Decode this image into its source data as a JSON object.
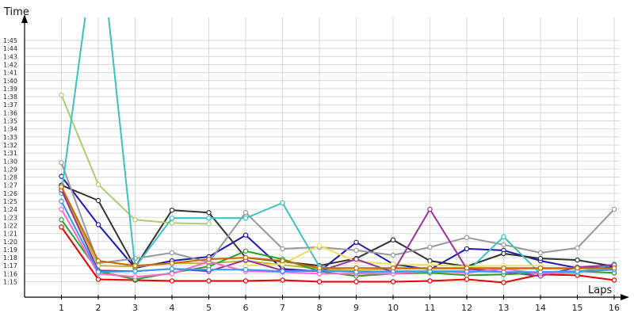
{
  "chart_data": {
    "type": "line",
    "xlabel": "Laps",
    "ylabel": "Time",
    "xlim": [
      0,
      16
    ],
    "ylim": [
      74,
      107
    ],
    "x": [
      1,
      2,
      3,
      4,
      5,
      6,
      7,
      8,
      9,
      10,
      11,
      12,
      13,
      14,
      15,
      16
    ],
    "x_tick_labels": [
      "1",
      "2",
      "3",
      "4",
      "5",
      "6",
      "7",
      "8",
      "9",
      "10",
      "11",
      "12",
      "13",
      "14",
      "15",
      "16"
    ],
    "y_ticks": [
      75,
      76,
      77,
      78,
      79,
      80,
      81,
      82,
      83,
      84,
      85,
      86,
      87,
      88,
      89,
      90,
      91,
      92,
      93,
      94,
      95,
      96,
      97,
      98,
      99,
      100,
      101,
      102,
      103,
      104,
      105
    ],
    "y_tick_labels": [
      "1:15",
      "1:16",
      "1:17",
      "1:18",
      "1:19",
      "1:20",
      "1:21",
      "1:22",
      "1:23",
      "1:24",
      "1:25",
      "1:26",
      "1:27",
      "1:28",
      "1:29",
      "1:30",
      "1:31",
      "1:32",
      "1:33",
      "1:34",
      "1:35",
      "1:36",
      "1:37",
      "1:38",
      "1:39",
      "1:40",
      "1:41",
      "1:42",
      "1:43",
      "1:44",
      "1:45"
    ],
    "grid": true,
    "legend": "none",
    "series": [
      {
        "color": "#e60000",
        "values": [
          81.8,
          75.3,
          75.2,
          75.1,
          75.1,
          75.1,
          75.2,
          75.0,
          75.0,
          75.0,
          75.1,
          75.3,
          74.9,
          75.9,
          75.8,
          75.2
        ]
      },
      {
        "color": "#1a1ab3",
        "values": [
          88.1,
          82.1,
          76.7,
          77.6,
          78.1,
          80.8,
          76.6,
          76.3,
          79.9,
          77.2,
          76.5,
          79.1,
          78.9,
          77.6,
          76.7,
          76.8
        ]
      },
      {
        "color": "#333333",
        "values": [
          87.0,
          85.1,
          76.8,
          83.9,
          83.6,
          78.0,
          77.5,
          77.0,
          77.9,
          80.2,
          77.6,
          76.9,
          78.5,
          77.9,
          77.7,
          76.9
        ]
      },
      {
        "color": "#999999",
        "values": [
          89.8,
          77.3,
          77.9,
          78.6,
          77.4,
          83.6,
          79.1,
          79.3,
          78.9,
          78.3,
          79.3,
          80.5,
          79.6,
          78.6,
          79.2,
          84.0
        ]
      },
      {
        "color": "#a8cf70",
        "values": [
          98.2,
          87.1,
          82.7,
          82.3,
          82.2,
          null,
          null,
          null,
          null,
          null,
          null,
          null,
          null,
          null,
          null,
          null
        ]
      },
      {
        "color": "#3cc2c2",
        "values": [
          86.0,
          120.0,
          76.8,
          82.9,
          82.9,
          82.9,
          84.8,
          76.9,
          76.2,
          76.2,
          76.2,
          76.2,
          80.6,
          76.0,
          76.1,
          77.2
        ]
      },
      {
        "color": "#b8b83a",
        "values": [
          86.7,
          77.0,
          76.9,
          77.3,
          77.3,
          77.6,
          77.1,
          76.6,
          76.4,
          76.6,
          76.6,
          76.6,
          76.6,
          76.6,
          76.6,
          76.6
        ]
      },
      {
        "color": "#f0e060",
        "values": [
          null,
          null,
          null,
          null,
          null,
          77.0,
          77.2,
          79.5,
          77.5,
          77.2,
          77.1,
          76.9,
          77.0,
          77.0,
          null,
          null
        ]
      },
      {
        "color": "#993399",
        "values": [
          86.4,
          76.4,
          76.3,
          76.6,
          76.3,
          77.7,
          76.4,
          76.3,
          77.8,
          76.2,
          84.0,
          76.6,
          76.2,
          75.7,
          76.8,
          77.1
        ]
      },
      {
        "color": "#2ea02e",
        "values": [
          82.7,
          76.3,
          75.3,
          76.1,
          76.9,
          78.8,
          77.8,
          76.3,
          75.7,
          76.0,
          76.1,
          75.8,
          75.9,
          76.1,
          76.3,
          76.1
        ]
      },
      {
        "color": "#ff66cc",
        "values": [
          84.0,
          76.0,
          75.6,
          76.0,
          77.5,
          76.3,
          76.2,
          76.0,
          76.0,
          76.0,
          76.3,
          76.1,
          76.6,
          76.0,
          76.3,
          76.5
        ]
      },
      {
        "color": "#3399ff",
        "values": [
          85.0,
          76.2,
          76.3,
          76.6,
          76.5,
          76.5,
          76.3,
          76.4,
          76.2,
          76.3,
          76.3,
          76.3,
          76.2,
          76.2,
          76.3,
          76.5
        ]
      },
      {
        "color": "#cc6600",
        "values": [
          86.8,
          77.6,
          77.0,
          77.3,
          77.8,
          78.0,
          77.6,
          76.7,
          76.7,
          76.7,
          76.7,
          76.7,
          76.7,
          76.7,
          76.7,
          76.7
        ]
      }
    ]
  }
}
